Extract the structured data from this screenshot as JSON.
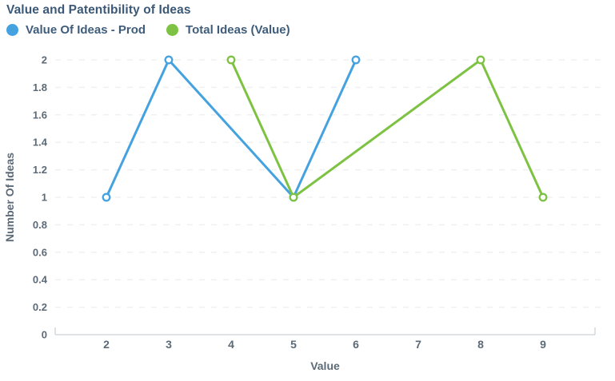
{
  "header": {
    "title": "Value and Patentibility of Ideas"
  },
  "chart_data": {
    "type": "line",
    "title": "Value and Patentibility of Ideas",
    "xlabel": "Value",
    "ylabel": "Number Of Ideas",
    "xticks": [
      2,
      3,
      4,
      5,
      6,
      7,
      8,
      9
    ],
    "yticks": [
      0,
      0.2,
      0.4,
      0.6,
      0.8,
      1,
      1.2,
      1.4,
      1.6,
      1.8,
      2
    ],
    "xlim": [
      1.2,
      9.8
    ],
    "ylim": [
      0,
      2
    ],
    "grid": "horizontal-dashed",
    "legend_position": "top-left",
    "marker_style": "hollow-circle",
    "series": [
      {
        "name": "Value Of Ideas - Prod",
        "color": "#45a2e0",
        "points": [
          [
            2,
            1
          ],
          [
            3,
            2
          ],
          [
            5,
            1
          ],
          [
            6,
            2
          ]
        ]
      },
      {
        "name": "Total Ideas (Value)",
        "color": "#7dc242",
        "points": [
          [
            4,
            2
          ],
          [
            5,
            1
          ],
          [
            8,
            2
          ],
          [
            9,
            1
          ]
        ]
      }
    ],
    "style": {
      "gridline_color": "#eef0f2",
      "axis_line_color": "#ccd2d8",
      "tick_label_color": "#5c6a77",
      "title_color": "#3b5977",
      "marker_fill": "#ffffff"
    }
  }
}
